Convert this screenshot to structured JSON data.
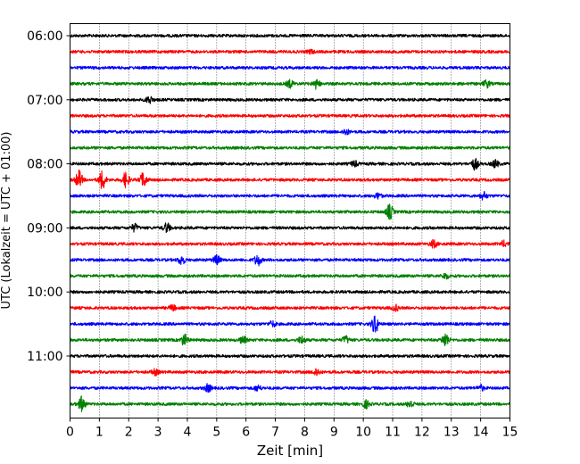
{
  "chart_data": {
    "type": "line",
    "title": "",
    "xlabel": "Zeit  [min]",
    "ylabel": "UTC (Lokalzeit = UTC + 01:00)",
    "xlim": [
      0,
      15
    ],
    "x_ticks": [
      "0",
      "1",
      "2",
      "3",
      "4",
      "5",
      "6",
      "7",
      "8",
      "9",
      "10",
      "11",
      "12",
      "13",
      "14",
      "15"
    ],
    "y_tick_labels": [
      "06:00",
      "07:00",
      "08:00",
      "09:00",
      "10:00",
      "11:00"
    ],
    "grid": {
      "vertical": true,
      "style": "dotted"
    },
    "trace_interval_min": 15,
    "trace_colors": [
      "#000000",
      "#ff0000",
      "#0000ff",
      "#008000"
    ],
    "traces": [
      {
        "start": "06:00",
        "events": []
      },
      {
        "start": "06:15",
        "events": [
          [
            8.2,
            1.0
          ]
        ]
      },
      {
        "start": "06:30",
        "events": []
      },
      {
        "start": "06:45",
        "events": [
          [
            7.5,
            2.0
          ],
          [
            8.4,
            2.5
          ],
          [
            14.2,
            2.0
          ]
        ]
      },
      {
        "start": "07:00",
        "events": [
          [
            2.7,
            2.0
          ]
        ]
      },
      {
        "start": "07:15",
        "events": []
      },
      {
        "start": "07:30",
        "events": [
          [
            9.4,
            1.5
          ]
        ]
      },
      {
        "start": "07:45",
        "events": []
      },
      {
        "start": "08:00",
        "events": [
          [
            9.7,
            1.5
          ],
          [
            13.8,
            3.0
          ],
          [
            14.5,
            2.0
          ]
        ]
      },
      {
        "start": "08:15",
        "events": [
          [
            0.3,
            5.0
          ],
          [
            1.1,
            5.0
          ],
          [
            1.9,
            4.0
          ],
          [
            2.5,
            4.0
          ]
        ]
      },
      {
        "start": "08:30",
        "events": [
          [
            10.5,
            1.5
          ],
          [
            14.1,
            2.0
          ]
        ]
      },
      {
        "start": "08:45",
        "events": [
          [
            10.9,
            4.0
          ]
        ]
      },
      {
        "start": "09:00",
        "events": [
          [
            2.2,
            2.0
          ],
          [
            3.3,
            2.5
          ]
        ]
      },
      {
        "start": "09:15",
        "events": [
          [
            12.4,
            2.0
          ],
          [
            14.8,
            1.5
          ]
        ]
      },
      {
        "start": "09:30",
        "events": [
          [
            3.8,
            2.5
          ],
          [
            5.0,
            2.5
          ],
          [
            6.4,
            3.0
          ]
        ]
      },
      {
        "start": "09:45",
        "events": [
          [
            12.8,
            1.5
          ]
        ]
      },
      {
        "start": "10:00",
        "events": []
      },
      {
        "start": "10:15",
        "events": [
          [
            3.5,
            1.5
          ],
          [
            11.1,
            1.5
          ]
        ]
      },
      {
        "start": "10:30",
        "events": [
          [
            10.4,
            5.0
          ],
          [
            6.9,
            1.5
          ]
        ]
      },
      {
        "start": "10:45",
        "events": [
          [
            3.9,
            3.0
          ],
          [
            5.9,
            2.0
          ],
          [
            7.9,
            2.0
          ],
          [
            9.4,
            2.0
          ],
          [
            12.8,
            4.0
          ]
        ]
      },
      {
        "start": "11:00",
        "events": []
      },
      {
        "start": "11:15",
        "events": [
          [
            2.9,
            1.5
          ],
          [
            8.4,
            2.0
          ]
        ]
      },
      {
        "start": "11:30",
        "events": [
          [
            4.7,
            2.0
          ],
          [
            6.4,
            1.5
          ],
          [
            14.0,
            1.5
          ]
        ]
      },
      {
        "start": "11:45",
        "events": [
          [
            0.4,
            4.0
          ],
          [
            10.1,
            2.0
          ],
          [
            11.6,
            2.0
          ]
        ]
      }
    ]
  }
}
